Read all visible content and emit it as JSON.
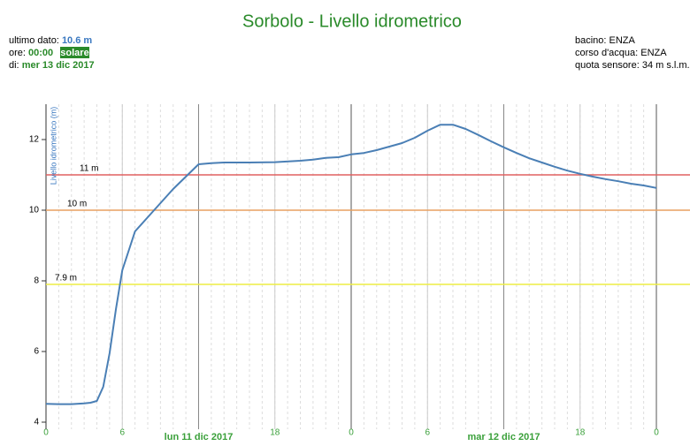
{
  "info": {
    "last_label": "ultimo dato:",
    "last_value": "10.6 m",
    "time_label": "ore:",
    "time_value": "00:00",
    "time_badge": "solare",
    "day_label": "di:",
    "day_value": "mer 13 dic 2017",
    "basin": "bacino: ENZA",
    "river": "corso d'acqua: ENZA",
    "sensor": "quota sensore: 34 m s.l.m."
  },
  "chart_data": {
    "type": "line",
    "title": "Sorbolo - Livello idrometrico",
    "y_label": "Livello idrometrico (m)",
    "x": [
      0,
      1,
      2,
      3,
      3.5,
      4,
      4.5,
      5,
      5.5,
      6,
      7,
      8,
      9,
      10,
      11,
      12,
      13,
      14,
      16,
      18,
      20,
      21,
      22,
      23,
      24,
      25,
      26,
      27,
      28,
      29,
      30,
      31,
      32,
      33,
      34,
      35,
      36,
      37,
      38,
      39,
      40,
      41,
      42,
      43,
      44,
      45,
      46,
      47,
      48
    ],
    "series": [
      {
        "name": "Livello idrometrico",
        "color": "#4a7fb5",
        "values": [
          4.52,
          4.51,
          4.51,
          4.53,
          4.55,
          4.6,
          5.0,
          5.95,
          7.2,
          8.3,
          9.4,
          9.8,
          10.2,
          10.6,
          10.95,
          11.3,
          11.33,
          11.35,
          11.35,
          11.36,
          11.4,
          11.43,
          11.48,
          11.5,
          11.58,
          11.62,
          11.7,
          11.8,
          11.9,
          12.05,
          12.25,
          12.42,
          12.42,
          12.3,
          12.13,
          11.95,
          11.78,
          11.62,
          11.47,
          11.35,
          11.23,
          11.12,
          11.03,
          10.95,
          10.88,
          10.82,
          10.75,
          10.7,
          10.63
        ]
      }
    ],
    "xlim": [
      0,
      48
    ],
    "xticks": [
      0,
      6,
      {
        "value": 12,
        "label": "lun 11 dic 2017"
      },
      18,
      {
        "value": 24,
        "label": "0"
      },
      {
        "value": 30,
        "label": "6"
      },
      {
        "value": 36,
        "label": "mar 12 dic 2017"
      },
      {
        "value": 42,
        "label": "18"
      },
      {
        "value": 48,
        "label": "0"
      }
    ],
    "ylim": [
      3.8,
      13
    ],
    "yticks": [
      4,
      6,
      8,
      10,
      12
    ],
    "thresholds": [
      {
        "value": 11,
        "label": "11 m",
        "color": "#e06060"
      },
      {
        "value": 10,
        "label": "10 m",
        "color": "#e8a060"
      },
      {
        "value": 7.9,
        "label": "7.9 m",
        "color": "#eeee44"
      }
    ],
    "grid": true
  }
}
